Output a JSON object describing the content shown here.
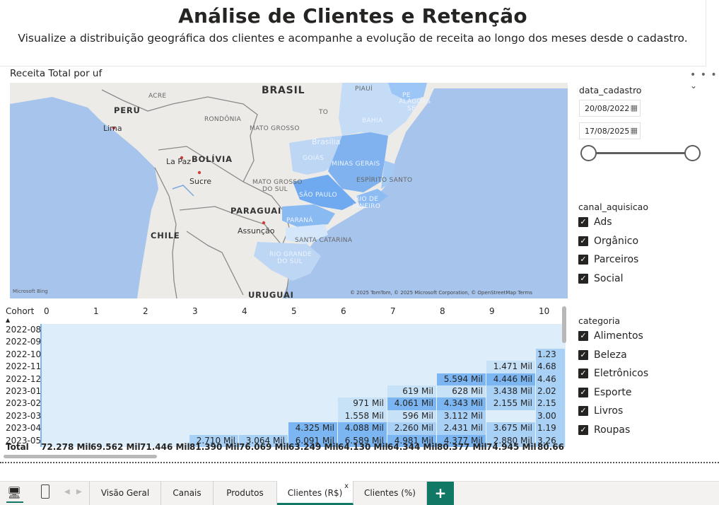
{
  "header": {
    "title": "Análise de Clientes e Retenção",
    "subtitle": "Visualize a distribuição geográfica dos clientes e acompanhe a evolução de receita ao longo dos meses desde o cadastro."
  },
  "map": {
    "title": "Receita Total por uf",
    "labels": {
      "brasil": "BRASIL",
      "peru": "PERU",
      "lima": "Lima",
      "bolivia": "BOLÍVIA",
      "lapaz": "La Paz",
      "sucre": "Sucre",
      "chile": "CHILE",
      "paraguai": "PARAGUAI",
      "assuncao": "Assunção",
      "uruguai": "URUGUAI",
      "acre": "ACRE",
      "rondonia": "RONDÔNIA",
      "matogrosso": "MATO GROSSO",
      "mtsul1": "MATO GROSSO",
      "mtsul2": "DO SUL",
      "goias": "GOIÁS",
      "brasilia": "Brasília",
      "minas": "MINAS GERAIS",
      "espirito": "ESPÍRITO SANTO",
      "saopaulo": "SÃO PAULO",
      "rio1": "RIO DE",
      "rio2": "JANEIRO",
      "parana": "PARANÁ",
      "santacatarina": "SANTA CATARINA",
      "rgs1": "RIO GRANDE",
      "rgs2": "DO SUL",
      "to": "TO",
      "bahia": "BAHIA",
      "piaui": "PIAUÍ",
      "pe": "PE",
      "alagoas": "ALAGOAS",
      "se": "SE"
    },
    "bing": "Microsoft Bing",
    "copyright": "© 2025 TomTom, © 2025 Microsoft Corporation, © OpenStreetMap  Terms"
  },
  "slicers": {
    "date": {
      "title": "data_cadastro",
      "start": "20/08/2022",
      "end": "17/08/2025"
    },
    "canal": {
      "title": "canal_aquisicao",
      "items": [
        "Ads",
        "Orgânico",
        "Parceiros",
        "Social"
      ]
    },
    "categoria": {
      "title": "categoria",
      "items": [
        "Alimentos",
        "Beleza",
        "Eletrônicos",
        "Esporte",
        "Livros",
        "Roupas"
      ]
    }
  },
  "matrix": {
    "corner": "Cohort",
    "columns": [
      "0",
      "1",
      "2",
      "3",
      "4",
      "5",
      "6",
      "7",
      "8",
      "9",
      "10"
    ],
    "rows": [
      {
        "cohort": "2022-08",
        "cells": [
          "",
          "",
          "",
          "",
          "",
          "",
          "",
          "",
          "",
          "",
          ""
        ]
      },
      {
        "cohort": "2022-09",
        "cells": [
          "",
          "",
          "",
          "",
          "",
          "",
          "",
          "",
          "",
          "",
          ""
        ]
      },
      {
        "cohort": "2022-10",
        "cells": [
          "",
          "",
          "",
          "",
          "",
          "",
          "",
          "",
          "",
          "",
          "1.23"
        ]
      },
      {
        "cohort": "2022-11",
        "cells": [
          "",
          "",
          "",
          "",
          "",
          "",
          "",
          "",
          "",
          "1.471 Mil",
          "4.68"
        ]
      },
      {
        "cohort": "2022-12",
        "cells": [
          "",
          "",
          "",
          "",
          "",
          "",
          "",
          "",
          "5.594 Mil",
          "4.446 Mil",
          "4.46"
        ]
      },
      {
        "cohort": "2023-01",
        "cells": [
          "",
          "",
          "",
          "",
          "",
          "",
          "",
          "619 Mil",
          "628 Mil",
          "3.438 Mil",
          "2.02"
        ]
      },
      {
        "cohort": "2023-02",
        "cells": [
          "",
          "",
          "",
          "",
          "",
          "",
          "971 Mil",
          "4.061 Mil",
          "4.343 Mil",
          "2.155 Mil",
          "2.15"
        ]
      },
      {
        "cohort": "2023-03",
        "cells": [
          "",
          "",
          "",
          "",
          "",
          "",
          "1.558 Mil",
          "596 Mil",
          "3.112 Mil",
          "",
          "3.00"
        ]
      },
      {
        "cohort": "2023-04",
        "cells": [
          "",
          "",
          "",
          "",
          "",
          "4.325 Mil",
          "4.088 Mil",
          "2.260 Mil",
          "2.431 Mil",
          "3.675 Mil",
          "1.19"
        ]
      },
      {
        "cohort": "2023-05",
        "cells": [
          "",
          "",
          "",
          "2.710 Mil",
          "3.064 Mil",
          "6.091 Mil",
          "6.589 Mil",
          "4.981 Mil",
          "4.377 Mil",
          "2.880 Mil",
          "3.26"
        ]
      }
    ],
    "total_label": "Total",
    "totals": [
      "72.278 Mil",
      "69.562 Mil",
      "71.446 Mil",
      "81.390 Mil",
      "76.069 Mil",
      "63.249 Mil",
      "64.130 Mil",
      "64.344 Mil",
      "80.377 Mil",
      "74.945 Mil",
      "80.66"
    ]
  },
  "tabs": {
    "items": [
      "Visão Geral",
      "Canais",
      "Produtos",
      "Clientes (R$)",
      "Clientes (%)"
    ],
    "active": "Clientes (R$)",
    "close": "x",
    "add": "+"
  },
  "colors": {
    "accent": "#117865",
    "cell_empty": "#ddeefa",
    "cell_light": "#c7e1f7",
    "cell_mid": "#a9d0f5",
    "cell_strong": "#7bb6f2",
    "map_water": "#a7c4ec",
    "map_land": "#ecebe8"
  }
}
